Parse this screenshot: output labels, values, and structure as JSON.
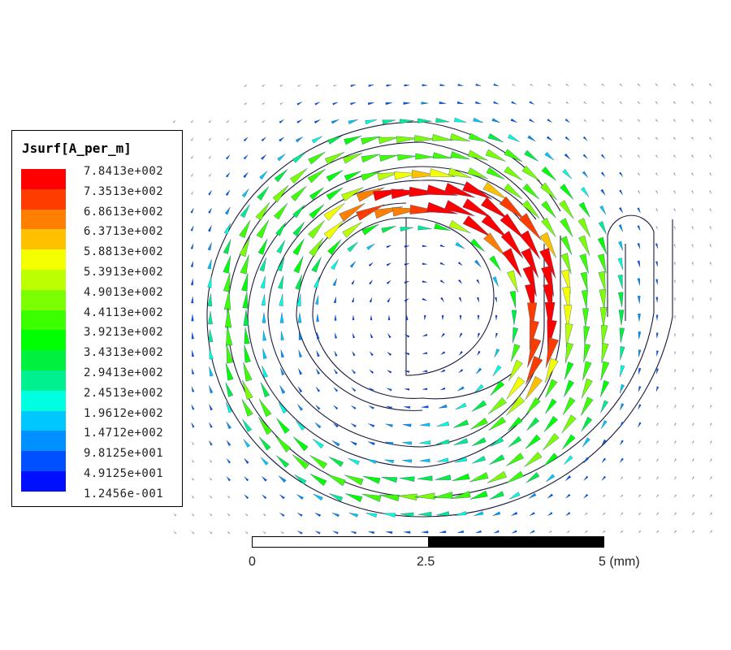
{
  "legend": {
    "title": "Jsurf[A_per_m]",
    "labels": [
      "7.8413e+002",
      "7.3513e+002",
      "6.8613e+002",
      "6.3713e+002",
      "5.8813e+002",
      "5.3913e+002",
      "4.9013e+002",
      "4.4113e+002",
      "3.9213e+002",
      "3.4313e+002",
      "2.9413e+002",
      "2.4513e+002",
      "1.9612e+002",
      "1.4712e+002",
      "9.8125e+001",
      "4.9125e+001",
      "1.2456e-001"
    ],
    "colors": [
      "#ff0000",
      "#ff3c00",
      "#ff7f00",
      "#ffc000",
      "#f4ff00",
      "#bcff00",
      "#7cff00",
      "#3cff00",
      "#00ff00",
      "#00f040",
      "#00f090",
      "#00ffe0",
      "#00c8ff",
      "#0090ff",
      "#0050ff",
      "#0010ff"
    ]
  },
  "scale": {
    "labels": [
      "0",
      "2.5",
      "5 (mm)"
    ]
  },
  "field": {
    "max_value": 784.13,
    "min_value": 0.12456,
    "direction": "clockwise"
  }
}
